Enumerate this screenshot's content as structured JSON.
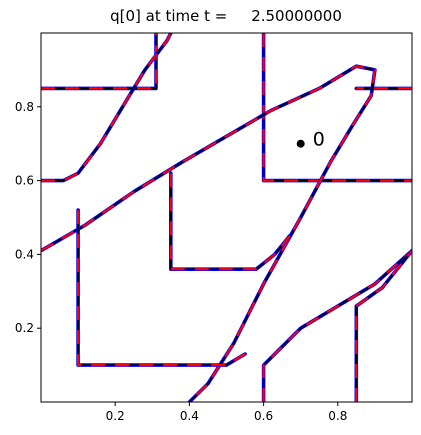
{
  "chart_data": {
    "type": "line",
    "title": "q[0] at time t =     2.50000000",
    "xlabel": "",
    "ylabel": "",
    "xlim": [
      0.0,
      1.0
    ],
    "ylim": [
      0.0,
      1.0
    ],
    "x_ticks": [
      0.2,
      0.4,
      0.6,
      0.8
    ],
    "y_ticks": [
      0.2,
      0.4,
      0.6,
      0.8
    ],
    "x_tick_labels": [
      "0.2",
      "0.4",
      "0.6",
      "0.8"
    ],
    "y_tick_labels": [
      "0.2",
      "0.4",
      "0.6",
      "0.8"
    ],
    "grid": false,
    "colors": {
      "outer": "#0000ff",
      "inner": "#000000",
      "marked": "#ff0000",
      "point": "#000000"
    },
    "series": [
      {
        "points": [
          [
            0.0,
            0.85
          ],
          [
            0.31,
            0.85
          ],
          [
            0.31,
            1.0
          ]
        ]
      },
      {
        "points": [
          [
            0.6,
            1.0
          ],
          [
            0.6,
            0.6
          ],
          [
            1.0,
            0.6
          ]
        ]
      },
      {
        "points": [
          [
            1.0,
            0.85
          ],
          [
            0.85,
            0.85
          ]
        ]
      },
      {
        "points": [
          [
            0.0,
            0.6
          ],
          [
            0.06,
            0.6
          ],
          [
            0.1,
            0.62
          ],
          [
            0.16,
            0.7
          ],
          [
            0.22,
            0.8
          ],
          [
            0.28,
            0.9
          ],
          [
            0.34,
            0.98
          ],
          [
            0.35,
            1.0
          ]
        ]
      },
      {
        "points": [
          [
            0.0,
            0.41
          ],
          [
            0.12,
            0.48
          ],
          [
            0.25,
            0.57
          ],
          [
            0.38,
            0.65
          ],
          [
            0.5,
            0.72
          ],
          [
            0.62,
            0.79
          ],
          [
            0.75,
            0.85
          ],
          [
            0.85,
            0.91
          ],
          [
            0.9,
            0.9
          ],
          [
            0.89,
            0.83
          ],
          [
            0.84,
            0.75
          ],
          [
            0.78,
            0.65
          ],
          [
            0.7,
            0.5
          ],
          [
            0.6,
            0.32
          ],
          [
            0.52,
            0.16
          ],
          [
            0.45,
            0.05
          ],
          [
            0.4,
            0.0
          ]
        ]
      },
      {
        "points": [
          [
            0.35,
            0.62
          ],
          [
            0.35,
            0.36
          ],
          [
            0.58,
            0.36
          ],
          [
            0.63,
            0.4
          ],
          [
            0.67,
            0.45
          ]
        ]
      },
      {
        "points": [
          [
            0.1,
            0.52
          ],
          [
            0.1,
            0.1
          ],
          [
            0.45,
            0.1
          ],
          [
            0.5,
            0.1
          ],
          [
            0.55,
            0.13
          ]
        ]
      },
      {
        "points": [
          [
            0.6,
            0.0
          ],
          [
            0.6,
            0.1
          ],
          [
            0.7,
            0.2
          ],
          [
            0.8,
            0.26
          ],
          [
            0.9,
            0.32
          ],
          [
            1.0,
            0.41
          ]
        ]
      },
      {
        "points": [
          [
            0.85,
            0.0
          ],
          [
            0.85,
            0.26
          ],
          [
            0.92,
            0.31
          ],
          [
            1.0,
            0.41
          ]
        ]
      }
    ],
    "annotations": [
      {
        "text": "0",
        "x": 0.7,
        "y": 0.7
      }
    ]
  }
}
